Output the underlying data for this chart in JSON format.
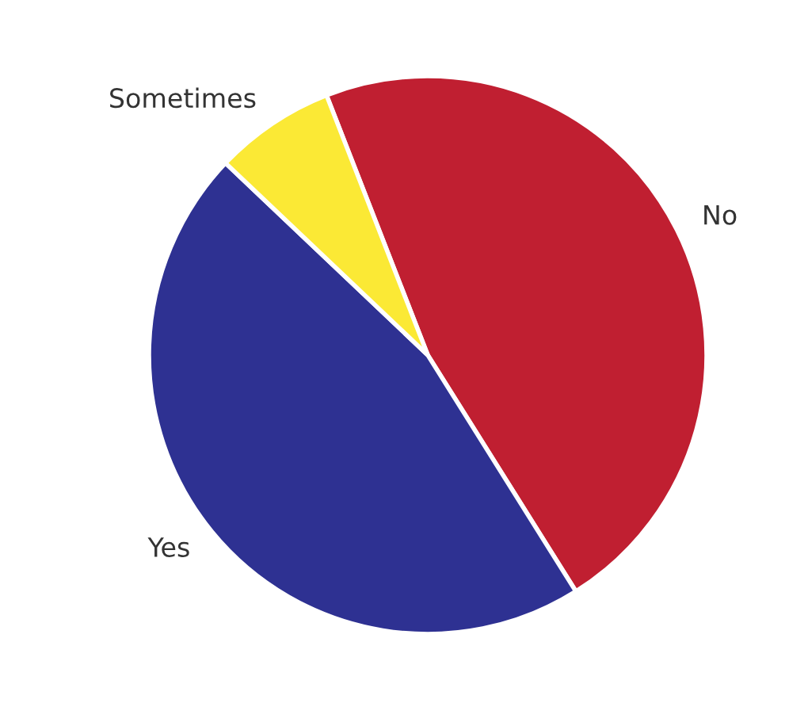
{
  "chart_data": {
    "type": "pie",
    "categories": [
      "No",
      "Yes",
      "Sometimes"
    ],
    "values": [
      47,
      46,
      7
    ],
    "colors": [
      "#c01f31",
      "#2e3192",
      "#fbe935"
    ]
  }
}
